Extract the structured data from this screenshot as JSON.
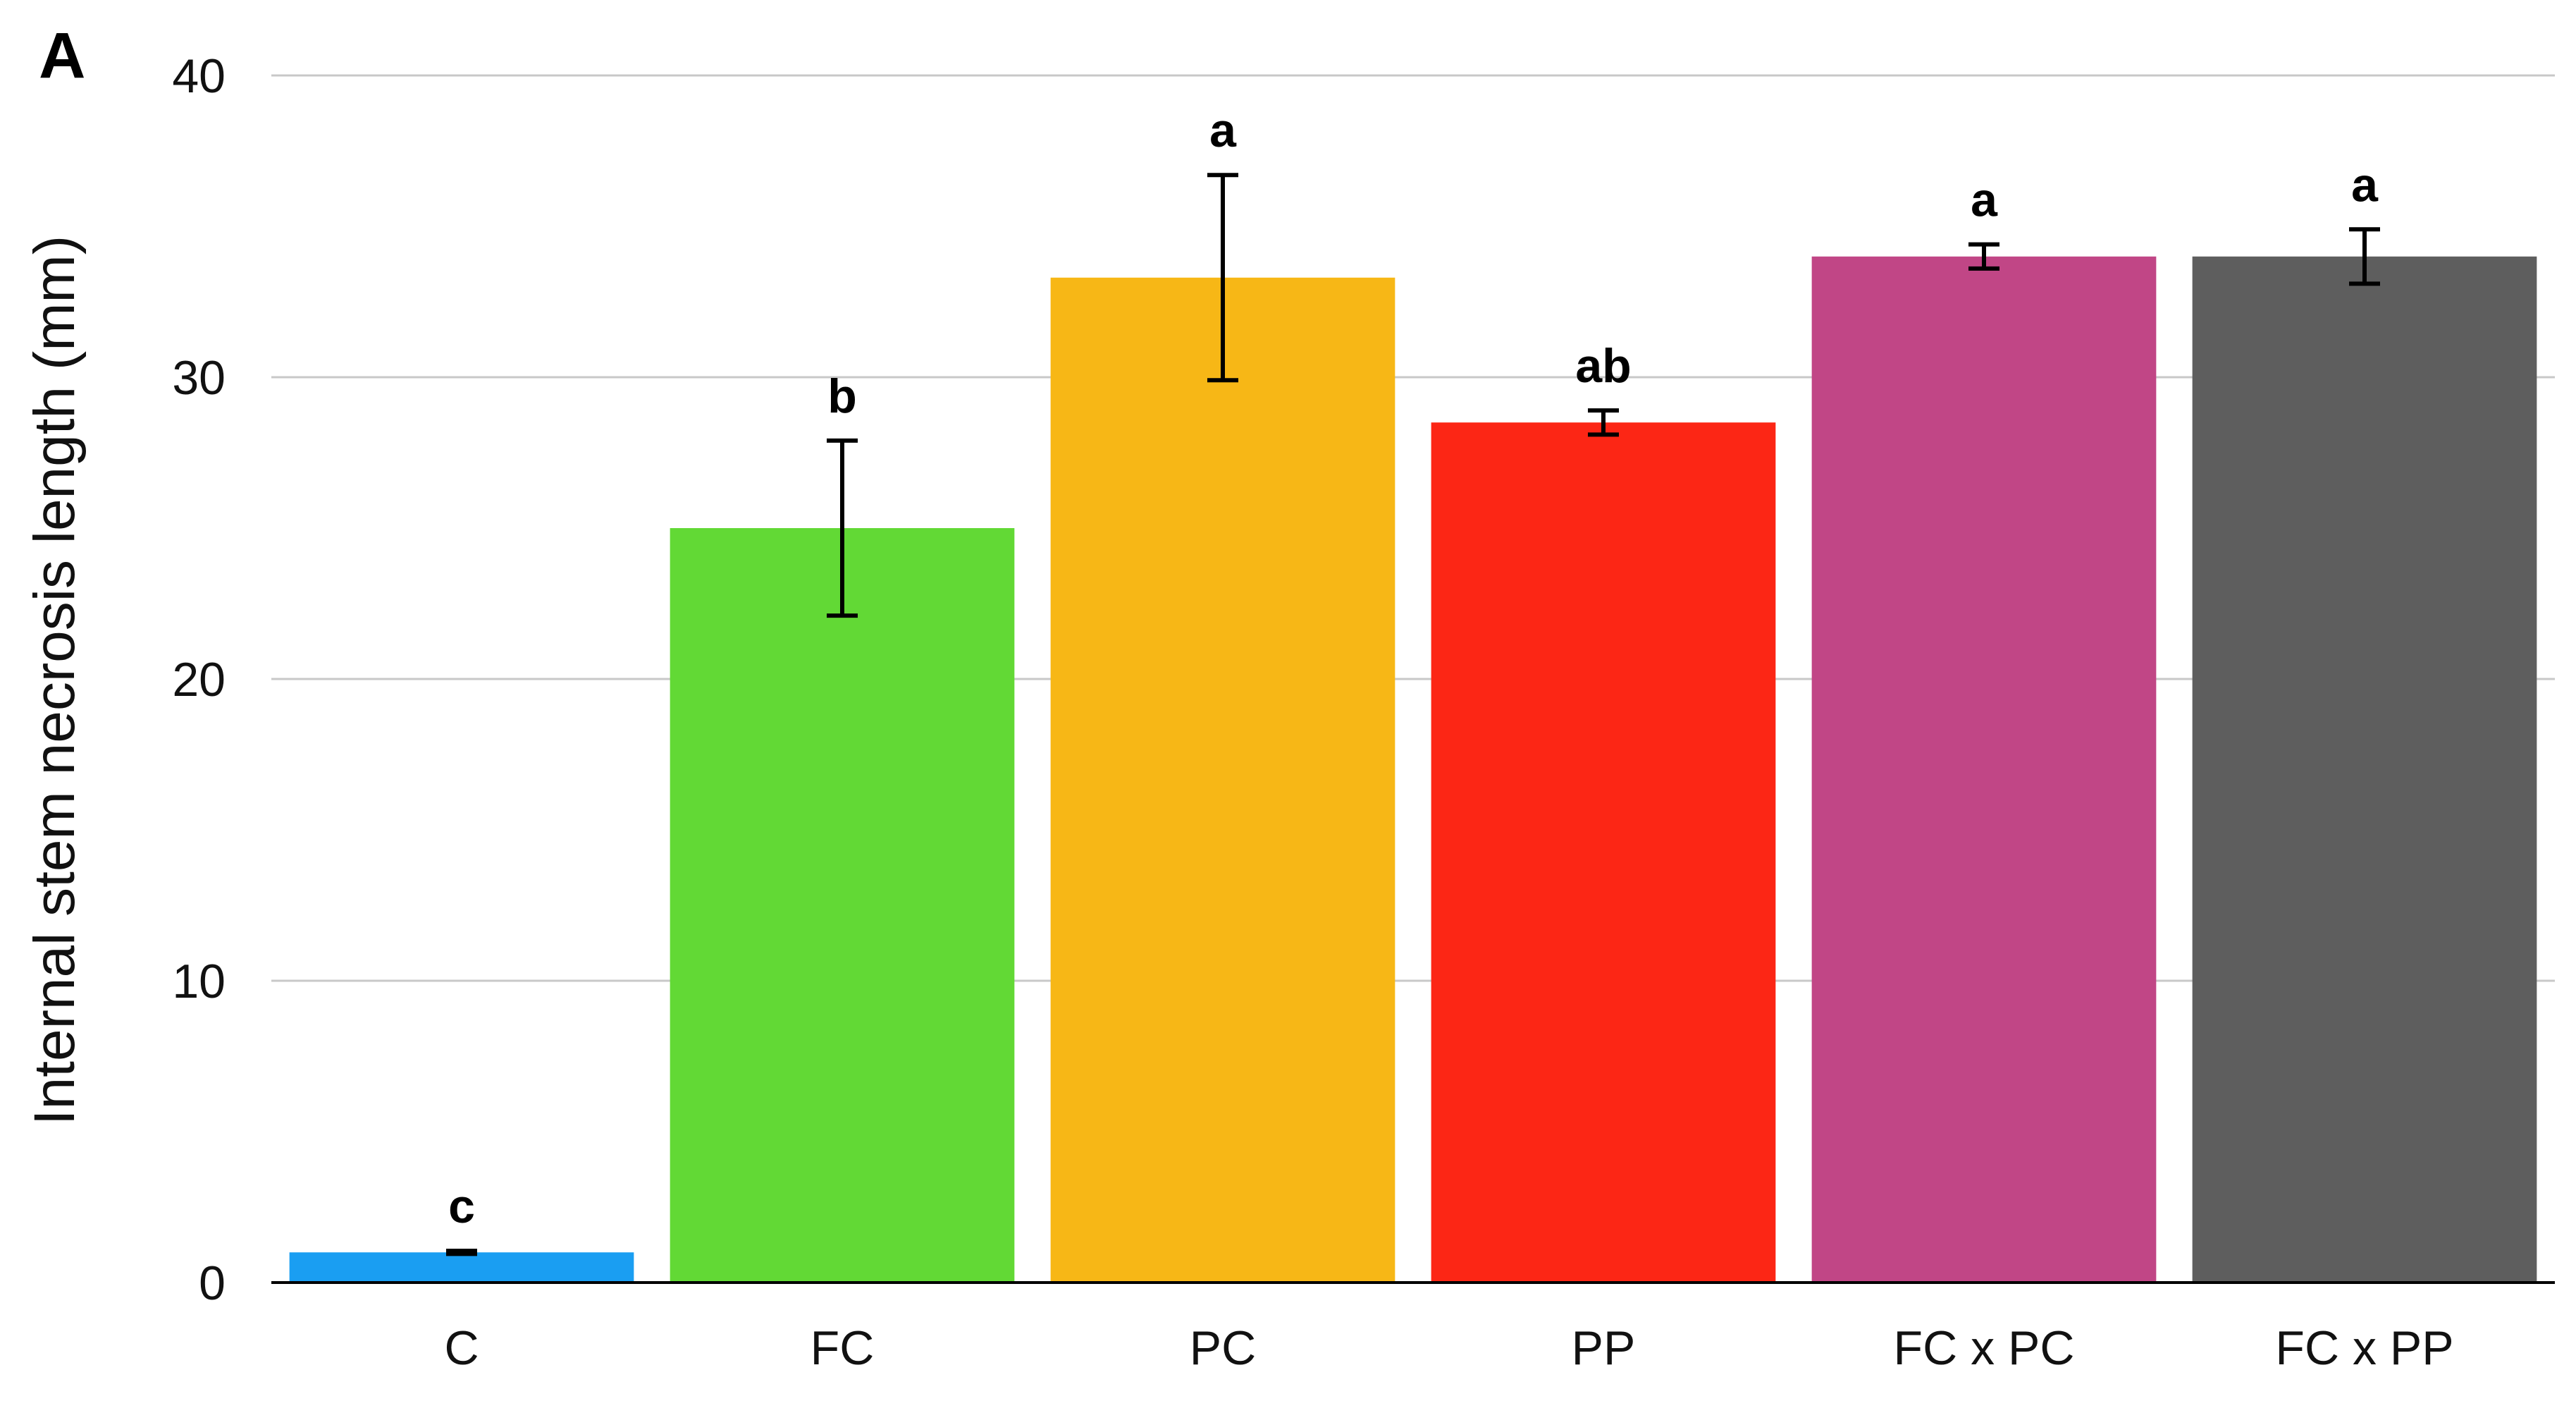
{
  "chart_data": {
    "type": "bar",
    "panel_label": "A",
    "title": "",
    "xlabel": "",
    "ylabel": "Internal stem necrosis length (mm)",
    "ylim": [
      0,
      40
    ],
    "yticks": [
      0,
      10,
      20,
      30,
      40
    ],
    "grid": true,
    "legend": "none",
    "categories": [
      "C",
      "FC",
      "PC",
      "PP",
      "FC x PC",
      "FC x PP"
    ],
    "values": [
      1.0,
      25.0,
      33.3,
      28.5,
      34.0,
      34.0
    ],
    "errors": [
      0.05,
      2.9,
      3.4,
      0.4,
      0.4,
      0.9
    ],
    "significance": [
      "c",
      "b",
      "a",
      "ab",
      "a",
      "a"
    ],
    "colors": [
      "#1a9ef2",
      "#62d935",
      "#f7b716",
      "#fc2615",
      "#c14686",
      "#5e5e5e"
    ]
  }
}
